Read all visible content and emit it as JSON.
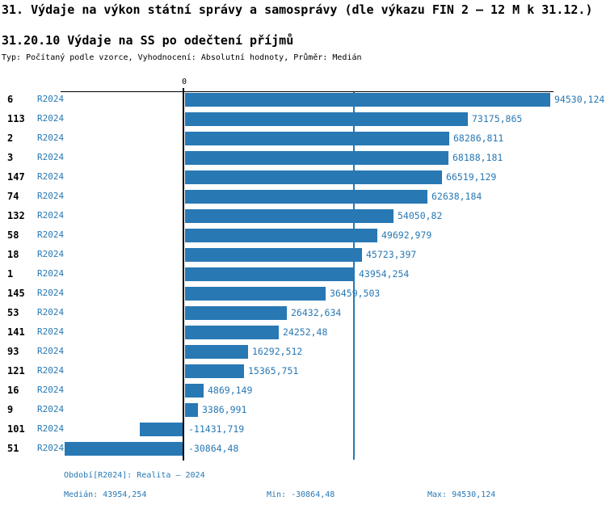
{
  "title": "31. Výdaje na výkon státní správy a samosprávy (dle výkazu FIN 2 – 12 M k 31.12.)",
  "subtitle": "31.20.10 Výdaje na SS po odečtení příjmů",
  "meta": "Typ: Počítaný podle vzorce, Vyhodnocení: Absolutní hodnoty, Průměr: Medián",
  "colors": {
    "bar": "#2878b4",
    "accent_text": "#2878b4",
    "axis": "#000000",
    "background": "#ffffff"
  },
  "chart_data": {
    "type": "bar",
    "orientation": "horizontal",
    "zero_tick": "0",
    "series_label": "R2024",
    "categories": [
      "6",
      "113",
      "2",
      "3",
      "147",
      "74",
      "132",
      "58",
      "18",
      "1",
      "145",
      "53",
      "141",
      "93",
      "121",
      "16",
      "9",
      "101",
      "51"
    ],
    "values": [
      94530.124,
      73175.865,
      68286.811,
      68188.181,
      66519.129,
      62638.184,
      54050.82,
      49692.979,
      45723.397,
      43954.254,
      36459.503,
      26432.634,
      24252.48,
      16292.512,
      15365.751,
      4869.149,
      3386.991,
      -11431.719,
      -30864.48
    ],
    "value_labels": [
      "94530,124",
      "73175,865",
      "68286,811",
      "68188,181",
      "66519,129",
      "62638,184",
      "54050,82",
      "49692,979",
      "45723,397",
      "43954,254",
      "36459,503",
      "26432,634",
      "24252,48",
      "16292,512",
      "15365,751",
      "4869,149",
      "3386,991",
      "-11431,719",
      "-30864,48"
    ],
    "median_line_value": 43954.254,
    "xlim": [
      -30864.48,
      94530.124
    ],
    "grid": false,
    "legend_position": "none"
  },
  "footer": {
    "period": "Období[R2024]: Realita – 2024",
    "median": "Medián: 43954,254",
    "min": "Min: -30864,48",
    "max": "Max: 94530,124"
  }
}
